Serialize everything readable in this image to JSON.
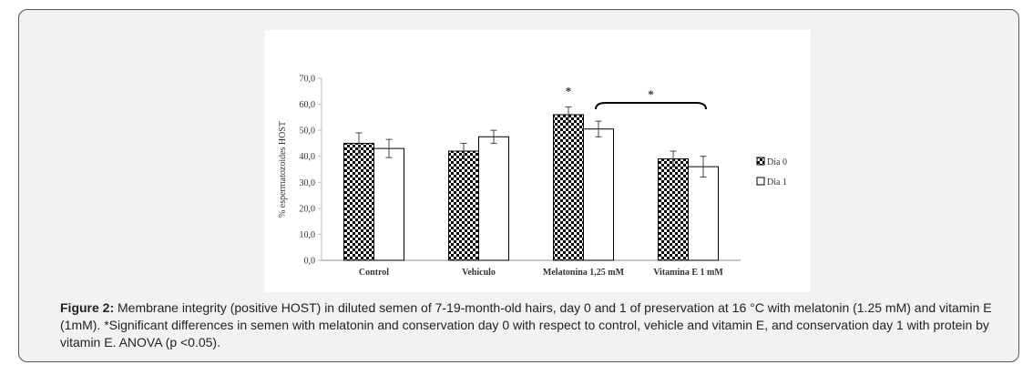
{
  "chart_data": {
    "type": "bar",
    "title": "",
    "xlabel": "",
    "ylabel": "% espermatozoides HOST",
    "ylim": [
      0,
      70
    ],
    "yticks": [
      "0,0",
      "10,0",
      "20,0",
      "30,0",
      "40,0",
      "50,0",
      "60,0",
      "70,0"
    ],
    "categories": [
      "Control",
      "Vehículo",
      "Melatonina 1,25 mM",
      "Vitamina E 1 mM"
    ],
    "series": [
      {
        "name": "Dia 0",
        "pattern": "checkerboard",
        "values": [
          45,
          42,
          56,
          39
        ],
        "errors": [
          4,
          3,
          3,
          3
        ]
      },
      {
        "name": "Dia 1",
        "pattern": "white",
        "values": [
          43,
          47.5,
          50.5,
          36
        ],
        "errors": [
          3.5,
          2.5,
          3,
          4
        ]
      }
    ],
    "legend_position": "right",
    "grid": false,
    "annotations": [
      {
        "text": "*",
        "target": "Melatonina 1,25 mM Dia 0"
      },
      {
        "text": "*",
        "target": "bracket Melatonina 1,25 mM Dia 1 to Vitamina E 1 mM Dia 1"
      }
    ]
  },
  "caption": {
    "label": "Figure 2:",
    "text": " Membrane integrity (positive HOST) in diluted semen of 7-19-month-old hairs, day 0 and 1 of preservation at 16 °C with melatonin (1.25 mM) and vitamin E (1mM). *Significant differences in semen with melatonin and conservation day 0 with respect to control, vehicle and vitamin E, and conservation day 1 with protein by vitamin E. ANOVA (p <0.05)."
  }
}
